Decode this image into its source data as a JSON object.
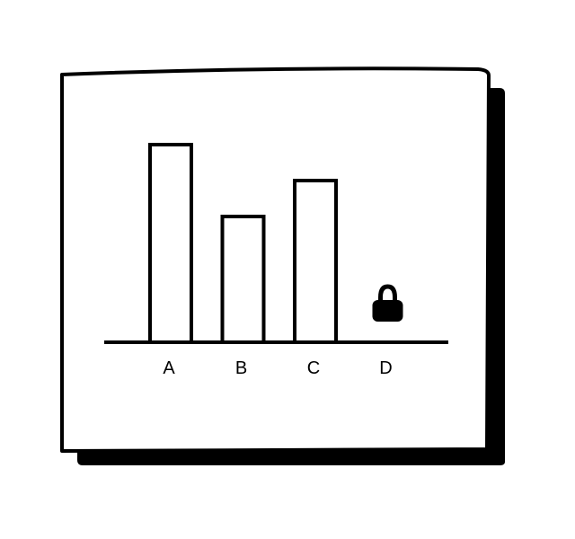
{
  "chart_data": {
    "type": "bar",
    "categories": [
      "A",
      "B",
      "C",
      "D"
    ],
    "values": [
      55,
      35,
      45,
      null
    ],
    "locked": [
      false,
      false,
      false,
      true
    ],
    "ylim": [
      0,
      60
    ],
    "grid": false,
    "title": "",
    "xlabel": "",
    "ylabel": ""
  },
  "icons": {
    "locked_bar": "lock-icon"
  },
  "colors": {
    "ink": "#000000",
    "paper": "#ffffff"
  }
}
